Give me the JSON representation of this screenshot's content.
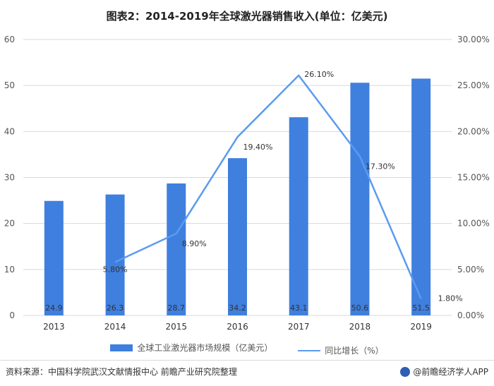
{
  "title": "图表2：2014-2019年全球激光器销售收入(单位：亿美元)",
  "source": "资料来源：中国科学院武汉文献情报中心 前瞻产业研究院整理",
  "brand": "@前瞻经济学人APP",
  "colors": {
    "bar": "#3f7fde",
    "line": "#5b9bef",
    "grid": "#d9d9d9"
  },
  "chart_data": {
    "type": "bar",
    "categories": [
      "2013",
      "2014",
      "2015",
      "2016",
      "2017",
      "2018",
      "2019"
    ],
    "series": [
      {
        "name": "全球工业激光器市场规模（亿美元）",
        "type": "bar",
        "axis": "left",
        "values": [
          24.9,
          26.3,
          28.7,
          34.2,
          43.1,
          50.6,
          51.5
        ],
        "labels": [
          "24.9",
          "26.3",
          "28.7",
          "34.2",
          "43.1",
          "50.6",
          "51.5"
        ]
      },
      {
        "name": "同比增长（%）",
        "type": "line",
        "axis": "right",
        "values": [
          null,
          5.8,
          8.9,
          19.4,
          26.1,
          17.3,
          1.8
        ],
        "labels": [
          "",
          "5.80%",
          "8.90%",
          "19.40%",
          "26.10%",
          "17.30%",
          "1.80%"
        ]
      }
    ],
    "y_left": {
      "min": 0,
      "max": 60,
      "ticks": [
        "0",
        "10",
        "20",
        "30",
        "40",
        "50",
        "60"
      ]
    },
    "y_right": {
      "min": 0,
      "max": 30,
      "ticks": [
        "0.00%",
        "5.00%",
        "10.00%",
        "15.00%",
        "20.00%",
        "25.00%",
        "30.00%"
      ]
    },
    "grid": true,
    "legend_position": "bottom"
  }
}
